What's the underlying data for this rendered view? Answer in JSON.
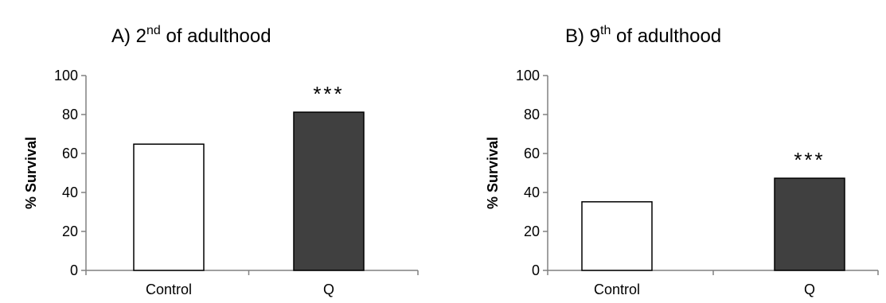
{
  "chart_data": [
    {
      "type": "bar",
      "title_prefix": "A) 2",
      "title_sup": "nd",
      "title_suffix": " of adulthood",
      "ylabel": "% Survival",
      "xlabel": "",
      "categories": [
        "Control",
        "Q"
      ],
      "values": [
        64.8,
        81.2
      ],
      "bar_colors": [
        "#ffffff",
        "#404040"
      ],
      "annotations": [
        "",
        "***"
      ],
      "ylim": [
        0,
        100
      ],
      "yticks": [
        0,
        20,
        40,
        60,
        80,
        100
      ],
      "grid": false
    },
    {
      "type": "bar",
      "title_prefix": "B) 9",
      "title_sup": "th",
      "title_suffix": " of adulthood",
      "ylabel": "% Survival",
      "xlabel": "",
      "categories": [
        "Control",
        "Q"
      ],
      "values": [
        35.2,
        47.3
      ],
      "bar_colors": [
        "#ffffff",
        "#404040"
      ],
      "annotations": [
        "",
        "***"
      ],
      "ylim": [
        0,
        100
      ],
      "yticks": [
        0,
        20,
        40,
        60,
        80,
        100
      ],
      "grid": false
    }
  ]
}
